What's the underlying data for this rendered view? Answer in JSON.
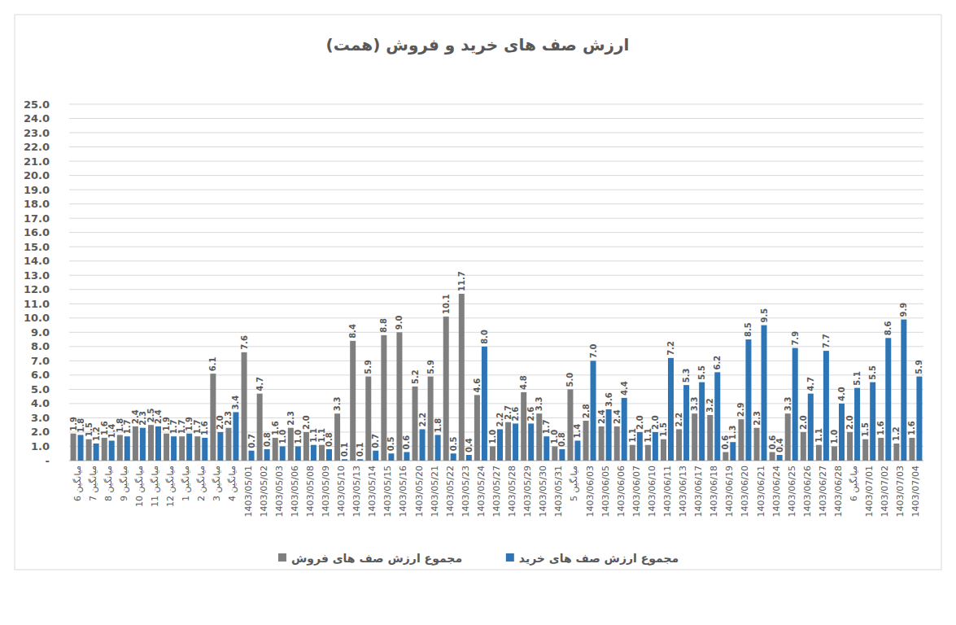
{
  "chart_data": {
    "type": "bar",
    "title": "ارزش صف های خرید و فروش (همت)",
    "categories": [
      "میانگین 6",
      "میانگین 7",
      "میانگین 8",
      "میانگین 9",
      "میانگین 10",
      "میانگین 11",
      "میانگین 12",
      "میانگین 1",
      "میانگین 2",
      "میانگین 3",
      "میانگین 4",
      "1403/05/01",
      "1403/05/02",
      "1403/05/03",
      "1403/05/06",
      "1403/05/08",
      "1403/05/09",
      "1403/05/10",
      "1403/05/13",
      "1403/05/14",
      "1403/05/15",
      "1403/05/16",
      "1403/05/20",
      "1403/05/21",
      "1403/05/22",
      "1403/05/23",
      "1403/05/24",
      "1403/05/27",
      "1403/05/28",
      "1403/05/29",
      "1403/05/30",
      "1403/05/31",
      "میانگین 5",
      "1403/06/03",
      "1403/06/05",
      "1403/06/06",
      "1403/06/07",
      "1403/06/10",
      "1403/06/11",
      "1403/06/13",
      "1403/06/17",
      "1403/06/18",
      "1403/06/19",
      "1403/06/20",
      "1403/06/21",
      "1403/06/24",
      "1403/06/25",
      "1403/06/26",
      "1403/06/27",
      "1403/06/28",
      "میانگین 6",
      "1403/07/01",
      "1403/07/02",
      "1403/07/03",
      "1403/07/04"
    ],
    "series": [
      {
        "name": "مجموع ارزش صف های فروش",
        "color": "#7f7f7f",
        "values": [
          1.9,
          1.5,
          1.6,
          1.8,
          2.4,
          2.5,
          1.9,
          1.7,
          1.7,
          6.1,
          2.3,
          7.6,
          4.7,
          1.6,
          2.3,
          2.0,
          1.1,
          3.3,
          8.4,
          5.9,
          8.8,
          9.0,
          5.2,
          5.9,
          10.1,
          11.7,
          4.6,
          1.0,
          2.7,
          4.8,
          3.3,
          1.0,
          5.0,
          2.8,
          2.4,
          2.4,
          1.1,
          1.1,
          1.5,
          2.2,
          3.3,
          3.2,
          0.6,
          2.9,
          2.3,
          0.6,
          3.3,
          2.0,
          1.1,
          1.0,
          2.0,
          1.5,
          1.6,
          1.2,
          1.6
        ],
        "value_labels": [
          "1.9",
          "1.5",
          "1.6",
          "1.8",
          "2.4",
          "2.5",
          "1.9",
          "1.7",
          "1.7",
          "6.1",
          "2.3",
          "7.6",
          "4.7",
          "1.6",
          "2.3",
          "2.0",
          "1.1",
          "3.3",
          "8.4",
          "5.9",
          "8.8",
          "9.0",
          "5.2",
          "5.9",
          "10.1",
          "11.7",
          "4.6",
          "1.0",
          "2.7",
          "4.8",
          "3.3",
          "1.0",
          "5.0",
          "2.8",
          "2.4",
          "2.4",
          "1.1",
          "1.1",
          "1.5",
          "2.2",
          "3.3",
          "3.2",
          "0.6",
          "2.9",
          "2.3",
          "0.6",
          "3.3",
          "2.0",
          "1.1",
          "1.0",
          "2.0",
          "1.5",
          "1.6",
          "1.2",
          "1.6"
        ]
      },
      {
        "name": "مجموع ارزش صف های خرید",
        "color": "#2e75b6",
        "values": [
          1.8,
          1.2,
          1.4,
          1.7,
          2.3,
          2.4,
          1.7,
          1.9,
          1.6,
          2.0,
          3.4,
          0.7,
          0.8,
          1.0,
          1.0,
          1.1,
          0.8,
          0.1,
          0.1,
          0.7,
          0.5,
          0.6,
          2.2,
          1.8,
          0.5,
          0.4,
          8.0,
          2.2,
          2.6,
          2.6,
          1.7,
          0.8,
          1.4,
          7.0,
          3.6,
          4.4,
          2.0,
          2.0,
          7.2,
          5.3,
          5.5,
          6.2,
          1.3,
          8.5,
          9.5,
          0.4,
          7.9,
          4.7,
          7.7,
          4.0,
          5.1,
          5.5,
          8.6,
          9.9,
          5.9
        ],
        "value_labels": [
          "1.8",
          "1.2",
          "1.4",
          "1.7",
          "2.3",
          "2.4",
          "1.7",
          "1.9",
          "1.6",
          "2.0",
          "3.4",
          "0.7",
          "0.8",
          "1.0",
          "1.0",
          "1.1",
          "0.8",
          "0.1",
          "0.1",
          "0.7",
          "0.5",
          "0.6",
          "2.2",
          "1.8",
          "0.5",
          "0.4",
          "8.0",
          "2.2",
          "2.6",
          "2.6",
          "1.7",
          "0.8",
          "1.4",
          "7.0",
          "3.6",
          "4.4",
          "2.0",
          "2.0",
          "7.2",
          "5.3",
          "5.5",
          "6.2",
          "1.3",
          "8.5",
          "9.5",
          "0.4",
          "7.9",
          "4.7",
          "7.7",
          "4.0",
          "5.1",
          "5.5",
          "8.6",
          "9.9",
          "5.9"
        ]
      }
    ],
    "ylim": [
      0,
      25
    ],
    "yticks": [
      {
        "value": 0,
        "label": "-"
      },
      {
        "value": 1,
        "label": "1.0"
      },
      {
        "value": 2,
        "label": "2.0"
      },
      {
        "value": 3,
        "label": "3.0"
      },
      {
        "value": 4,
        "label": "4.0"
      },
      {
        "value": 5,
        "label": "5.0"
      },
      {
        "value": 6,
        "label": "6.0"
      },
      {
        "value": 7,
        "label": "7.0"
      },
      {
        "value": 8,
        "label": "8.0"
      },
      {
        "value": 9,
        "label": "9.0"
      },
      {
        "value": 10,
        "label": "10.0"
      },
      {
        "value": 11,
        "label": "11.0"
      },
      {
        "value": 12,
        "label": "12.0"
      },
      {
        "value": 13,
        "label": "13.0"
      },
      {
        "value": 14,
        "label": "14.0"
      },
      {
        "value": 15,
        "label": "15.0"
      },
      {
        "value": 16,
        "label": "16.0"
      },
      {
        "value": 17,
        "label": "17.0"
      },
      {
        "value": 18,
        "label": "18.0"
      },
      {
        "value": 19,
        "label": "19.0"
      },
      {
        "value": 20,
        "label": "20.0"
      },
      {
        "value": 21,
        "label": "21.0"
      },
      {
        "value": 22,
        "label": "22.0"
      },
      {
        "value": 23,
        "label": "23.0"
      },
      {
        "value": 24,
        "label": "24.0"
      },
      {
        "value": 25,
        "label": "25.0"
      }
    ],
    "grid": true,
    "data_labels": true,
    "legend": "bottom"
  }
}
